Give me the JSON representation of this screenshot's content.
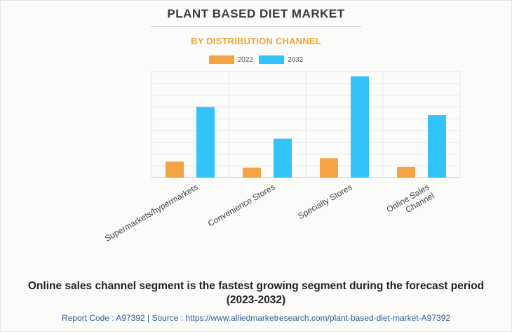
{
  "chart_data": {
    "type": "bar",
    "title": "PLANT BASED DIET MARKET",
    "subtitle": "BY DISTRIBUTION CHANNEL",
    "categories": [
      "Supermarkets/hypermarkets",
      "Convenience Stores",
      "Specialty Stores",
      "Online Sales Channel"
    ],
    "category_lines": [
      [
        "Supermarkets/hypermarkets"
      ],
      [
        "Convenience Stores"
      ],
      [
        "Specialty Stores"
      ],
      [
        "Online Sales",
        "Channel"
      ]
    ],
    "series": [
      {
        "name": "2022",
        "color": "#f4a444",
        "values": [
          13.5,
          8.5,
          16.5,
          9
        ]
      },
      {
        "name": "2032",
        "color": "#33c3fb",
        "values": [
          60,
          33,
          86,
          53
        ]
      }
    ],
    "ylim": [
      0,
      90
    ],
    "ytick_step": 10,
    "grid": true,
    "legend_position": "top-center",
    "xlabel": "",
    "ylabel": ""
  },
  "footnote": {
    "line1": "Online sales channel segment is the fastest growing segment during the forecast period",
    "line2": "(2023-2032)"
  },
  "source_text": "Report Code : A97392  |  Source : https://www.alliedmarketresearch.com/plant-based-diet-market-A97392"
}
